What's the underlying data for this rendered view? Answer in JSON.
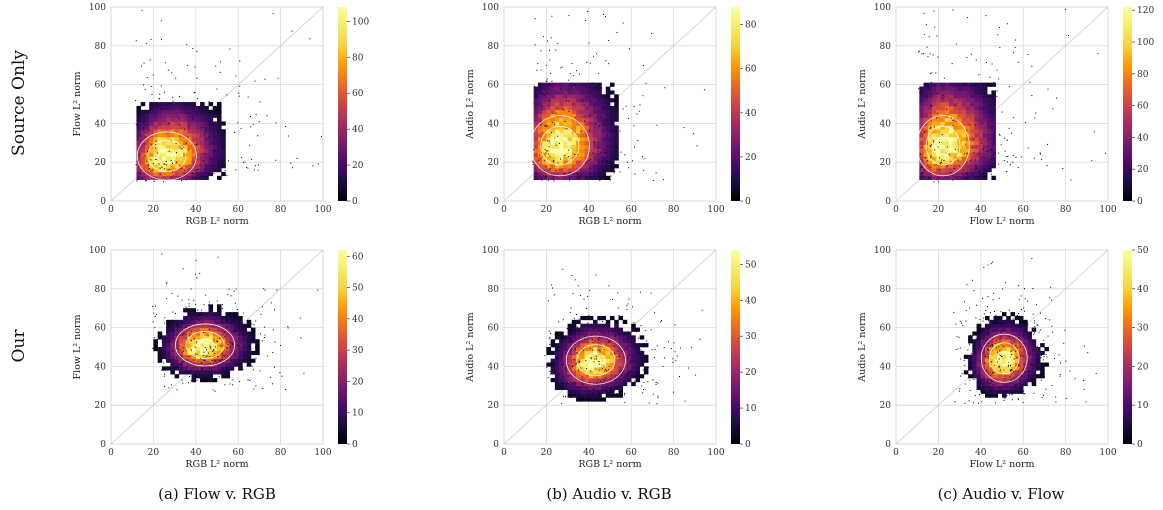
{
  "figure": {
    "row_labels": [
      "Source Only",
      "Our"
    ],
    "captions": [
      "(a) Flow v. RGB",
      "(b) Audio v. RGB",
      "(c) Audio v. Flow"
    ]
  },
  "colors": {
    "colormap": "inferno",
    "grid": "#d9d9d9",
    "diagonal": "#c8c8c8",
    "contour": "#ffffff",
    "points": "#000000"
  },
  "chart_data": [
    {
      "type": "heatmap",
      "panel": "source-flow-rgb",
      "xlabel": "RGB L² norm",
      "ylabel": "Flow L² norm",
      "xlim": [
        0,
        100
      ],
      "ylim": [
        0,
        100
      ],
      "ticks": [
        0,
        20,
        40,
        60,
        80,
        100
      ],
      "colorbar": {
        "min": 0,
        "max": 108,
        "ticks": [
          0,
          20,
          40,
          60,
          80,
          100
        ]
      },
      "density": {
        "cx": 25,
        "cy": 22,
        "sx": 9,
        "sy": 8,
        "rho": 0.15,
        "xmin": 12,
        "ymin": 11,
        "skew_x": 0.5,
        "skew_y": 0.8
      },
      "grid": true,
      "diagonal": true
    },
    {
      "type": "heatmap",
      "panel": "source-audio-rgb",
      "xlabel": "RGB L² norm",
      "ylabel": "Audio L² norm",
      "xlim": [
        0,
        100
      ],
      "ylim": [
        0,
        100
      ],
      "ticks": [
        0,
        20,
        40,
        60,
        80,
        100
      ],
      "colorbar": {
        "min": 0,
        "max": 88,
        "ticks": [
          0,
          20,
          40,
          60,
          80
        ]
      },
      "density": {
        "cx": 25,
        "cy": 27,
        "sx": 9,
        "sy": 10,
        "rho": 0.1,
        "xmin": 14,
        "ymin": 11,
        "skew_x": 0.5,
        "skew_y": 0.9
      },
      "grid": true,
      "diagonal": true
    },
    {
      "type": "heatmap",
      "panel": "source-audio-flow",
      "xlabel": "Flow L² norm",
      "ylabel": "Audio L² norm",
      "xlim": [
        0,
        100
      ],
      "ylim": [
        0,
        100
      ],
      "ticks": [
        0,
        20,
        40,
        60,
        80,
        100
      ],
      "colorbar": {
        "min": 0,
        "max": 122,
        "ticks": [
          0,
          20,
          40,
          60,
          80,
          100,
          120
        ]
      },
      "density": {
        "cx": 21,
        "cy": 27,
        "sx": 8,
        "sy": 10,
        "rho": 0.1,
        "xmin": 11,
        "ymin": 11,
        "skew_x": 0.8,
        "skew_y": 0.9
      },
      "grid": true,
      "diagonal": true
    },
    {
      "type": "heatmap",
      "panel": "our-flow-rgb",
      "xlabel": "RGB L² norm",
      "ylabel": "Flow L² norm",
      "xlim": [
        0,
        100
      ],
      "ylim": [
        0,
        100
      ],
      "ticks": [
        0,
        20,
        40,
        60,
        80,
        100
      ],
      "colorbar": {
        "min": 0,
        "max": 62,
        "ticks": [
          0,
          10,
          20,
          30,
          40,
          50,
          60
        ]
      },
      "density": {
        "cx": 43,
        "cy": 50,
        "sx": 9,
        "sy": 7,
        "rho": 0.05,
        "xmin": 20,
        "ymin": 28,
        "skew_x": 0.2,
        "skew_y": 0.2
      },
      "grid": true,
      "diagonal": true
    },
    {
      "type": "heatmap",
      "panel": "our-audio-rgb",
      "xlabel": "RGB L² norm",
      "ylabel": "Audio L² norm",
      "xlim": [
        0,
        100
      ],
      "ylim": [
        0,
        100
      ],
      "ticks": [
        0,
        20,
        40,
        60,
        80,
        100
      ],
      "colorbar": {
        "min": 0,
        "max": 54,
        "ticks": [
          0,
          10,
          20,
          30,
          40,
          50
        ]
      },
      "density": {
        "cx": 42,
        "cy": 42,
        "sx": 9,
        "sy": 8,
        "rho": 0.1,
        "xmin": 20,
        "ymin": 22,
        "skew_x": 0.2,
        "skew_y": 0.2
      },
      "grid": true,
      "diagonal": true
    },
    {
      "type": "heatmap",
      "panel": "our-audio-flow",
      "xlabel": "Flow L² norm",
      "ylabel": "Audio L² norm",
      "xlim": [
        0,
        100
      ],
      "ylim": [
        0,
        100
      ],
      "ticks": [
        0,
        20,
        40,
        60,
        80,
        100
      ],
      "colorbar": {
        "min": 0,
        "max": 50,
        "ticks": [
          0,
          10,
          20,
          30,
          40,
          50
        ]
      },
      "density": {
        "cx": 50,
        "cy": 43,
        "sx": 7,
        "sy": 8,
        "rho": 0.05,
        "xmin": 28,
        "ymin": 22,
        "skew_x": 0.2,
        "skew_y": 0.2
      },
      "grid": true,
      "diagonal": true
    }
  ]
}
